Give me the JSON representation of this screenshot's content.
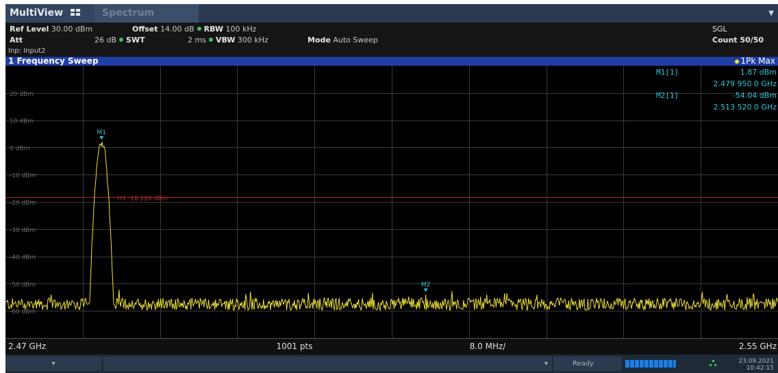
{
  "tabs": [
    {
      "label": "MultiView",
      "active": true
    },
    {
      "label": "Spectrum",
      "active": false
    }
  ],
  "settings": {
    "ref_level_label": "Ref Level",
    "ref_level_value": "30.00 dBm",
    "offset_label": "Offset",
    "offset_value": "14.00 dB",
    "rbw_label": "RBW",
    "rbw_value": "100 kHz",
    "att_label": "Att",
    "att_value": "26 dB",
    "swt_label": "SWT",
    "swt_value": "2 ms",
    "vbw_label": "VBW",
    "vbw_value": "300 kHz",
    "mode_label": "Mode",
    "mode_value": "Auto Sweep",
    "input": "Inp: Input2",
    "sgl": "SGL",
    "count": "Count 50/50"
  },
  "sweep": {
    "title": "1 Frequency Sweep",
    "trace_label": "1Pk Max"
  },
  "markers": [
    {
      "name": "M1",
      "label": "M1[1]",
      "level": "1.87 dBm",
      "freq": "2.479 950 0 GHz",
      "freq_ghz": 2.47995,
      "level_dbm": 1.87
    },
    {
      "name": "M2",
      "label": "M2[1]",
      "level": "-54.04 dBm",
      "freq": "2.513 520 0 GHz",
      "freq_ghz": 2.51352,
      "level_dbm": -54.04
    }
  ],
  "chart_data": {
    "type": "line",
    "xlabel": "",
    "ylabel": "",
    "xlim": [
      2.47,
      2.55
    ],
    "ylim": [
      -70,
      30
    ],
    "y_ticks": [
      "20 dBm",
      "10 dBm",
      "0 dBm",
      "-10 dBm",
      "-20 dBm",
      "-30 dBm",
      "-40 dBm",
      "-50 dBm",
      "-60 dBm"
    ],
    "y_tick_values": [
      20,
      10,
      0,
      -10,
      -20,
      -30,
      -40,
      -50,
      -60
    ],
    "grid": true,
    "threshold_line": {
      "label": "H1 -18.128 dBm",
      "value": -18.128
    },
    "x_start_label": "2.47 GHz",
    "points_label": "1001 pts",
    "span_label": "8.0 MHz/",
    "x_end_label": "2.55 GHz",
    "series": [
      {
        "color": "#f0e23a",
        "noise_floor_dbm": -57.5,
        "peak": {
          "x": 2.47995,
          "y": 1.87
        },
        "secondary": {
          "x": 2.51352,
          "y": -54.04
        }
      }
    ]
  },
  "status": {
    "text": "Ready",
    "date": "23.09.2021",
    "time": "10:42:15"
  },
  "colors": {
    "tab_bg": "#2a3950",
    "sweep_bar": "#1f3fa7",
    "trace": "#f0e23a",
    "marker": "#2ec8d8",
    "threshold": "#b02222"
  }
}
